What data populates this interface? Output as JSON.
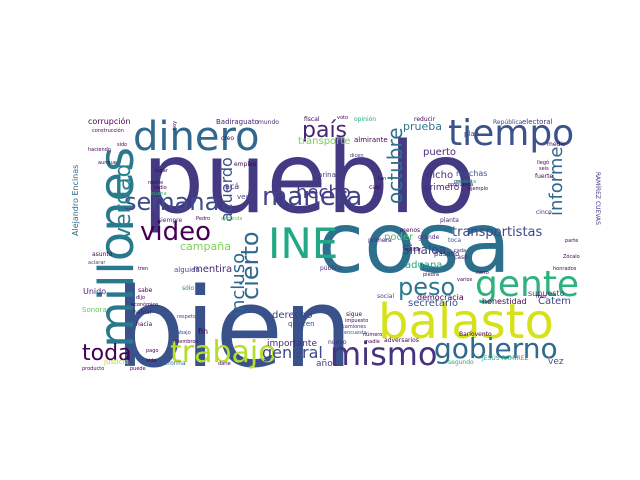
{
  "palette": {
    "deep_purple": "#440154",
    "indigo": "#3b528b",
    "blue": "#31688e",
    "teal": "#21918c",
    "green": "#35b779",
    "light_green": "#5ec962",
    "lime": "#b5de2b",
    "yellow": "#d6e21a"
  },
  "words": {
    "pueblo": "pueblo",
    "bien": "bien",
    "cosa": "cosa",
    "millones": "millones",
    "balasto": "balasto",
    "dinero": "dinero",
    "tiempo": "tiempo",
    "ine": "INE",
    "gente": "gente",
    "mismo": "mismo",
    "trabajo": "trabajo",
    "gobierno": "gobierno",
    "manera": "manera",
    "semana": "semana",
    "video": "video",
    "verdad": "verdad",
    "peso": "peso",
    "cierto": "cierto",
    "octubre": "octubre",
    "pais": "país",
    "hecho": "hecho",
    "toda": "toda",
    "general": "general",
    "incluso": "incluso",
    "acuerdo": "acuerdo",
    "informe": "informe",
    "transportistas": "transportistas",
    "mentira": "mentira",
    "campana": "campaña",
    "sinaloa": "Sinaloa",
    "aduana": "aduana",
    "poder": "poder",
    "secretario": "secretario",
    "democracia": "democracia",
    "derecho": "derecho",
    "importante": "importante",
    "catem": "Catem",
    "supuesto": "supuesto",
    "honestidad": "honestidad",
    "transporte": "transporte",
    "prueba": "prueba",
    "puerto": "puerto",
    "muchas": "muchas",
    "dicho": "dicho",
    "primero": "primero",
    "corrupcion": "corrupción",
    "badiraguato": "Badiraguato",
    "mundo": "mundo",
    "reducir": "reducir",
    "electoral": "electoral",
    "republica": "República",
    "alejandro": "Alejandro Encinas",
    "jesus": "JESÚS RAMÍREZ",
    "ramirez_cuevas": "RAMÍREZ CUEVAS",
    "anos": "años",
    "vez": "vez",
    "justicia": "justicia",
    "reforma": "reforma",
    "adversarios": "adversarios",
    "segundo": "segundo",
    "sonora": "Sonora",
    "unido": "Unido",
    "hacia": "hacia",
    "hablar": "hablar",
    "respeto": "respeto",
    "nuevo": "nuevo",
    "quieren": "quieren",
    "publico": "público",
    "social": "social",
    "sigue": "sigue",
    "camiones": "camiones",
    "encuesta": "encuesta",
    "primera": "primera",
    "grande": "grande",
    "toca": "toca",
    "pasado": "pasado",
    "menos": "menos",
    "planta": "planta",
    "cada": "cada",
    "caso": "caso",
    "cinco": "cinco",
    "plan": "plan",
    "dicen": "dicen",
    "veces": "veces",
    "empleo": "empleo",
    "marina": "Marina",
    "siempre": "siempre",
    "segunda": "segunda",
    "aca": "acá",
    "alguien": "alguien",
    "fin": "fin",
    "solo": "sólo",
    "asunto": "asunto",
    "aclarar": "aclarar",
    "sabe": "sabe",
    "abajo": "abajo",
    "pedro": "Pedro",
    "miembros": "miembros",
    "construccion": "construcción",
    "haciendo": "haciendo",
    "aunque": "aunque",
    "sido": "sido",
    "noche": "noche",
    "fuerte": "fuerte",
    "llego": "llegó",
    "ejemplo": "ejemplo",
    "seis": "seis",
    "medio": "medio",
    "politica": "política",
    "almirante": "almirante",
    "opinion": "opinión",
    "fiscal": "fiscal",
    "voto": "voto",
    "hoy": "hoy",
    "creo": "creo",
    "lugar": "lugar",
    "radio": "radio",
    "buena": "buena",
    "parte": "parte",
    "zocalo": "Zócalo",
    "honrados": "honrados",
    "mes": "mes",
    "carro": "carro",
    "varios": "varios",
    "piedra": "piedra",
    "militar": "militar",
    "numero": "número",
    "nadie": "nadie",
    "barlovento": "Barlovento",
    "impuesto": "impuesto",
    "molesta": "molesta",
    "propuesta": "propuesta",
    "casi": "casi",
    "tan": "tan",
    "pago": "pago",
    "vida": "vida",
    "producto": "producto",
    "darle": "darle",
    "puede": "puede",
    "tren": "tren",
    "economico": "económico",
    "dijo": "dijo"
  }
}
